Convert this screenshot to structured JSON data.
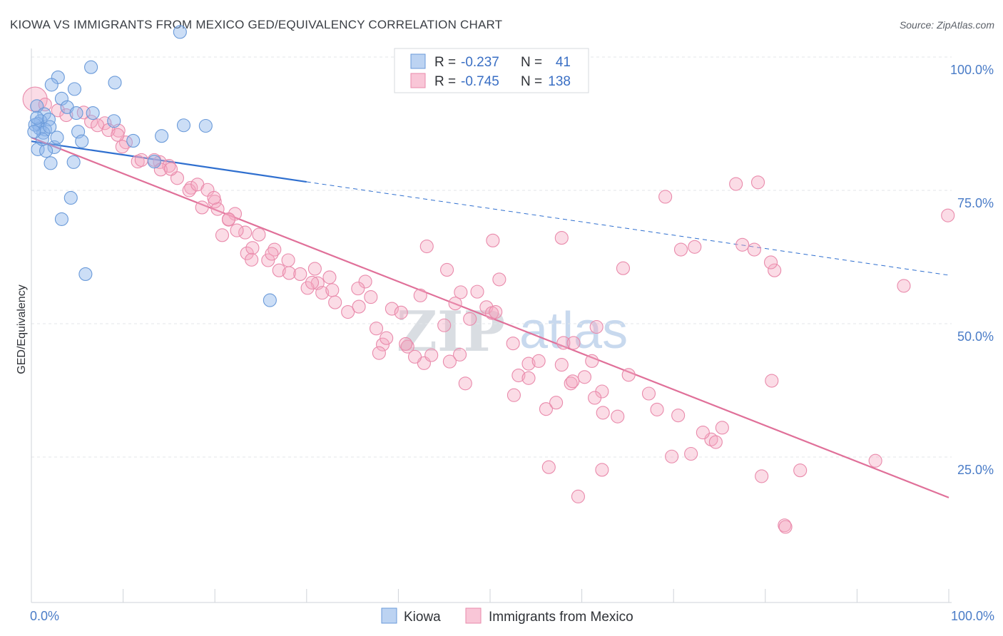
{
  "header": {
    "title": "KIOWA VS IMMIGRANTS FROM MEXICO GED/EQUIVALENCY CORRELATION CHART",
    "source": "Source: ZipAtlas.com"
  },
  "watermark": {
    "zip": "ZIP",
    "atlas": "atlas"
  },
  "legend_box": {
    "rows": [
      {
        "r_label": "R =",
        "r_value": "-0.237",
        "n_label": "N =",
        "n_value": "41",
        "color": "#8fb6ea"
      },
      {
        "r_label": "R =",
        "r_value": "-0.745",
        "n_label": "N =",
        "n_value": "138",
        "color": "#f4a7c0"
      }
    ]
  },
  "bottom_legend": {
    "items": [
      {
        "label": "Kiowa",
        "color": "#8fb6ea"
      },
      {
        "label": "Immigrants from Mexico",
        "color": "#f4a7c0"
      }
    ]
  },
  "chart_data": {
    "type": "scatter",
    "title": "KIOWA VS IMMIGRANTS FROM MEXICO GED/EQUIVALENCY CORRELATION CHART",
    "xlabel": "",
    "ylabel": "GED/Equivalency",
    "xlim": [
      0,
      100
    ],
    "ylim": [
      0,
      100
    ],
    "x_tick_labels": {
      "left": "0.0%",
      "right": "100.0%"
    },
    "y_ticks": [
      {
        "value": 100,
        "label": "100.0%"
      },
      {
        "value": 75,
        "label": "75.0%"
      },
      {
        "value": 50,
        "label": "50.0%"
      },
      {
        "value": 25,
        "label": "25.0%"
      }
    ],
    "grid": "horizontal dashed",
    "legend_placement": "top-center",
    "series": [
      {
        "name": "Kiowa",
        "color": "#8fb6ea",
        "stroke": "#6a9ad9",
        "trend": {
          "x0": 0,
          "y0": 84.2,
          "x1": 30,
          "y1": 76.6,
          "dashed_to": 100,
          "dashed_y": 59.1,
          "color": "#2f6fcf"
        },
        "points": [
          [
            16.2,
            104.7
          ],
          [
            6.5,
            98.1
          ],
          [
            2.9,
            96.2
          ],
          [
            2.2,
            94.8
          ],
          [
            9.1,
            95.2
          ],
          [
            4.7,
            94.0
          ],
          [
            3.3,
            92.2
          ],
          [
            0.6,
            90.8
          ],
          [
            3.9,
            90.6
          ],
          [
            6.7,
            89.5
          ],
          [
            1.4,
            89.3
          ],
          [
            4.9,
            89.5
          ],
          [
            1.0,
            88.0
          ],
          [
            1.9,
            88.3
          ],
          [
            0.7,
            87.5
          ],
          [
            0.9,
            86.6
          ],
          [
            1.5,
            86.4
          ],
          [
            9.0,
            88.0
          ],
          [
            16.6,
            87.2
          ],
          [
            19.0,
            87.1
          ],
          [
            5.1,
            86.0
          ],
          [
            1.3,
            85.8
          ],
          [
            0.4,
            87.3
          ],
          [
            14.2,
            85.2
          ],
          [
            2.5,
            83.1
          ],
          [
            0.7,
            82.7
          ],
          [
            11.1,
            84.3
          ],
          [
            5.5,
            84.2
          ],
          [
            1.6,
            82.4
          ],
          [
            2.1,
            80.1
          ],
          [
            4.6,
            80.3
          ],
          [
            13.4,
            80.4
          ],
          [
            4.3,
            73.6
          ],
          [
            3.3,
            69.6
          ],
          [
            5.9,
            59.3
          ],
          [
            26.0,
            54.4
          ],
          [
            2.0,
            86.9
          ],
          [
            1.2,
            84.6
          ],
          [
            0.3,
            86.0
          ],
          [
            0.6,
            88.6
          ],
          [
            2.8,
            84.9
          ]
        ]
      },
      {
        "name": "Immigrants from Mexico",
        "color": "#f4a7c0",
        "stroke": "#e98aab",
        "trend": {
          "x0": 0,
          "y0": 84.9,
          "x1": 100,
          "y1": 17.4,
          "color": "#e07099"
        },
        "points": [
          [
            0.4,
            92.1
          ],
          [
            1.5,
            91.1
          ],
          [
            2.9,
            90.0
          ],
          [
            3.8,
            89.1
          ],
          [
            6.5,
            87.9
          ],
          [
            8.0,
            87.6
          ],
          [
            7.2,
            87.2
          ],
          [
            5.7,
            89.6
          ],
          [
            9.5,
            86.2
          ],
          [
            10.3,
            84.0
          ],
          [
            8.4,
            86.3
          ],
          [
            9.4,
            85.4
          ],
          [
            11.6,
            80.4
          ],
          [
            9.9,
            83.2
          ],
          [
            12.0,
            80.7
          ],
          [
            14.0,
            80.3
          ],
          [
            13.4,
            80.7
          ],
          [
            15.0,
            79.6
          ],
          [
            15.9,
            77.3
          ],
          [
            14.1,
            78.9
          ],
          [
            17.4,
            75.5
          ],
          [
            17.2,
            75.0
          ],
          [
            18.1,
            76.1
          ],
          [
            15.2,
            79.0
          ],
          [
            19.2,
            75.1
          ],
          [
            20.0,
            72.9
          ],
          [
            18.6,
            71.8
          ],
          [
            20.3,
            71.5
          ],
          [
            22.2,
            70.6
          ],
          [
            21.5,
            69.5
          ],
          [
            20.8,
            66.6
          ],
          [
            19.9,
            73.6
          ],
          [
            21.5,
            69.6
          ],
          [
            23.3,
            67.1
          ],
          [
            22.4,
            67.5
          ],
          [
            23.5,
            63.2
          ],
          [
            24.8,
            66.7
          ],
          [
            25.8,
            61.9
          ],
          [
            24.1,
            64.2
          ],
          [
            26.5,
            63.9
          ],
          [
            24.0,
            62.0
          ],
          [
            27.0,
            60.0
          ],
          [
            26.2,
            63.1
          ],
          [
            28.1,
            59.5
          ],
          [
            28.0,
            61.9
          ],
          [
            29.3,
            59.3
          ],
          [
            30.9,
            60.3
          ],
          [
            31.2,
            57.6
          ],
          [
            30.1,
            56.7
          ],
          [
            32.5,
            58.7
          ],
          [
            31.7,
            55.8
          ],
          [
            32.8,
            56.3
          ],
          [
            30.6,
            57.7
          ],
          [
            33.1,
            54.0
          ],
          [
            34.5,
            52.2
          ],
          [
            36.4,
            57.9
          ],
          [
            35.6,
            56.6
          ],
          [
            37.0,
            55.0
          ],
          [
            35.7,
            53.2
          ],
          [
            37.6,
            49.1
          ],
          [
            38.3,
            46.1
          ],
          [
            37.9,
            44.5
          ],
          [
            38.7,
            47.3
          ],
          [
            39.3,
            52.8
          ],
          [
            40.3,
            52.1
          ],
          [
            41.0,
            45.7
          ],
          [
            40.8,
            46.2
          ],
          [
            42.8,
            42.6
          ],
          [
            43.6,
            44.1
          ],
          [
            41.8,
            43.8
          ],
          [
            42.4,
            55.3
          ],
          [
            43.1,
            64.5
          ],
          [
            45.0,
            49.7
          ],
          [
            45.3,
            60.1
          ],
          [
            45.6,
            42.9
          ],
          [
            46.2,
            53.8
          ],
          [
            46.7,
            44.2
          ],
          [
            47.3,
            38.8
          ],
          [
            46.8,
            55.9
          ],
          [
            47.8,
            50.9
          ],
          [
            48.6,
            56.0
          ],
          [
            49.6,
            53.1
          ],
          [
            50.2,
            52.0
          ],
          [
            50.3,
            65.6
          ],
          [
            51.0,
            58.3
          ],
          [
            50.6,
            52.2
          ],
          [
            52.5,
            46.3
          ],
          [
            53.1,
            40.3
          ],
          [
            52.6,
            36.6
          ],
          [
            54.2,
            39.8
          ],
          [
            54.2,
            42.5
          ],
          [
            55.3,
            43.0
          ],
          [
            56.1,
            34.0
          ],
          [
            57.2,
            35.2
          ],
          [
            58.0,
            46.4
          ],
          [
            57.8,
            42.3
          ],
          [
            58.8,
            38.8
          ],
          [
            59.0,
            39.2
          ],
          [
            57.8,
            66.1
          ],
          [
            59.1,
            46.4
          ],
          [
            60.3,
            40.0
          ],
          [
            61.1,
            43.0
          ],
          [
            61.6,
            49.4
          ],
          [
            62.2,
            37.3
          ],
          [
            62.3,
            33.3
          ],
          [
            64.5,
            60.4
          ],
          [
            65.1,
            40.4
          ],
          [
            67.3,
            36.9
          ],
          [
            68.2,
            33.9
          ],
          [
            69.1,
            73.8
          ],
          [
            70.5,
            32.8
          ],
          [
            70.8,
            63.9
          ],
          [
            72.3,
            64.4
          ],
          [
            74.1,
            28.3
          ],
          [
            71.9,
            25.6
          ],
          [
            69.8,
            25.1
          ],
          [
            62.2,
            22.6
          ],
          [
            56.4,
            23.1
          ],
          [
            61.4,
            36.1
          ],
          [
            63.9,
            32.6
          ],
          [
            59.6,
            17.6
          ],
          [
            73.2,
            29.6
          ],
          [
            75.3,
            30.5
          ],
          [
            76.8,
            76.2
          ],
          [
            79.2,
            76.5
          ],
          [
            77.5,
            64.8
          ],
          [
            81.0,
            60.0
          ],
          [
            74.6,
            27.8
          ],
          [
            80.7,
            39.3
          ],
          [
            78.8,
            63.9
          ],
          [
            80.6,
            61.5
          ],
          [
            82.1,
            12.2
          ],
          [
            95.1,
            57.1
          ],
          [
            92.0,
            24.3
          ],
          [
            83.8,
            22.5
          ],
          [
            79.6,
            21.4
          ],
          [
            99.9,
            70.3
          ],
          [
            82.2,
            11.9
          ]
        ]
      }
    ]
  }
}
